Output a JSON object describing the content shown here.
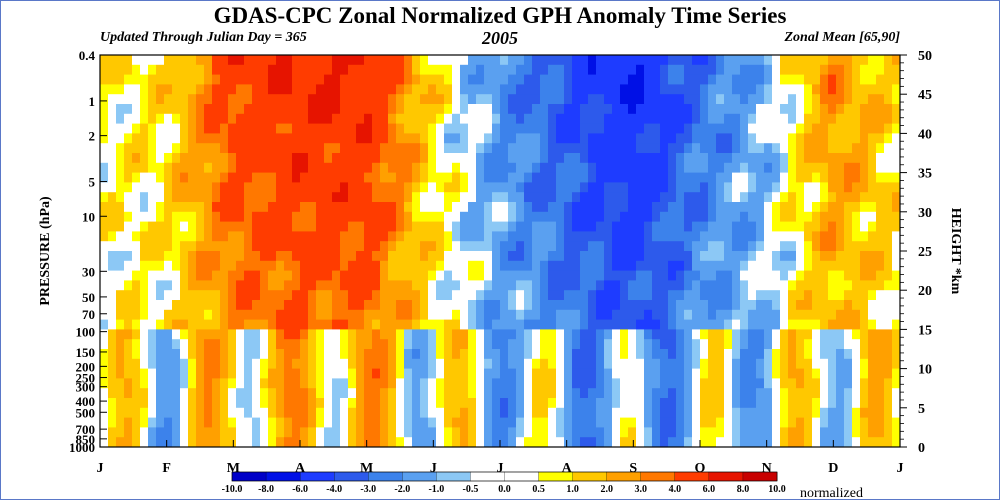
{
  "title": "GDAS-CPC Zonal Normalized GPH Anomaly Time Series",
  "subtitle_left": "Updated Through Julian Day = 365",
  "subtitle_center": "2005",
  "subtitle_right": "Zonal Mean [65,90]",
  "chart_data": {
    "type": "heatmap",
    "x_ticks": [
      "J",
      "F",
      "M",
      "A",
      "M",
      "J",
      "J",
      "A",
      "S",
      "O",
      "N",
      "D",
      "J"
    ],
    "y_left_label": "PRESSURE (hPa)",
    "y_left_ticks": [
      "0.4",
      "1",
      "2",
      "5",
      "10",
      "30",
      "50",
      "70",
      "100",
      "150",
      "200",
      "250",
      "300",
      "400",
      "500",
      "700",
      "850",
      "1000"
    ],
    "y_left_tick_values": [
      0.4,
      1,
      2,
      5,
      10,
      30,
      50,
      70,
      100,
      150,
      200,
      250,
      300,
      400,
      500,
      700,
      850,
      1000
    ],
    "y_right_label": "HEIGHT *km",
    "y_right_ticks": [
      "0",
      "5",
      "10",
      "15",
      "20",
      "25",
      "30",
      "35",
      "40",
      "45",
      "50"
    ],
    "y_right_range": [
      0,
      50
    ],
    "colorbar": {
      "levels": [
        "-10.0",
        "-8.0",
        "-6.0",
        "-4.0",
        "-3.0",
        "-2.0",
        "-1.0",
        "-0.5",
        "0.0",
        "0.5",
        "1.0",
        "2.0",
        "3.0",
        "4.0",
        "6.0",
        "8.0",
        "10.0"
      ],
      "colors": [
        "#0000c8",
        "#0010e6",
        "#1e3cff",
        "#2d5aeb",
        "#3c82eb",
        "#5aa0f0",
        "#8cc8f5",
        "#ffffff",
        "#ffffff",
        "#ffff00",
        "#ffc800",
        "#ffa000",
        "#ff7800",
        "#ff3c00",
        "#e61400",
        "#c80000"
      ],
      "label": "normalized"
    },
    "anomaly_profile_by_month": [
      0.5,
      1.0,
      5.0,
      6.0,
      6.0,
      1.0,
      -2.0,
      -4.0,
      -6.0,
      -3.0,
      -1.0,
      3.0,
      1.0
    ]
  }
}
